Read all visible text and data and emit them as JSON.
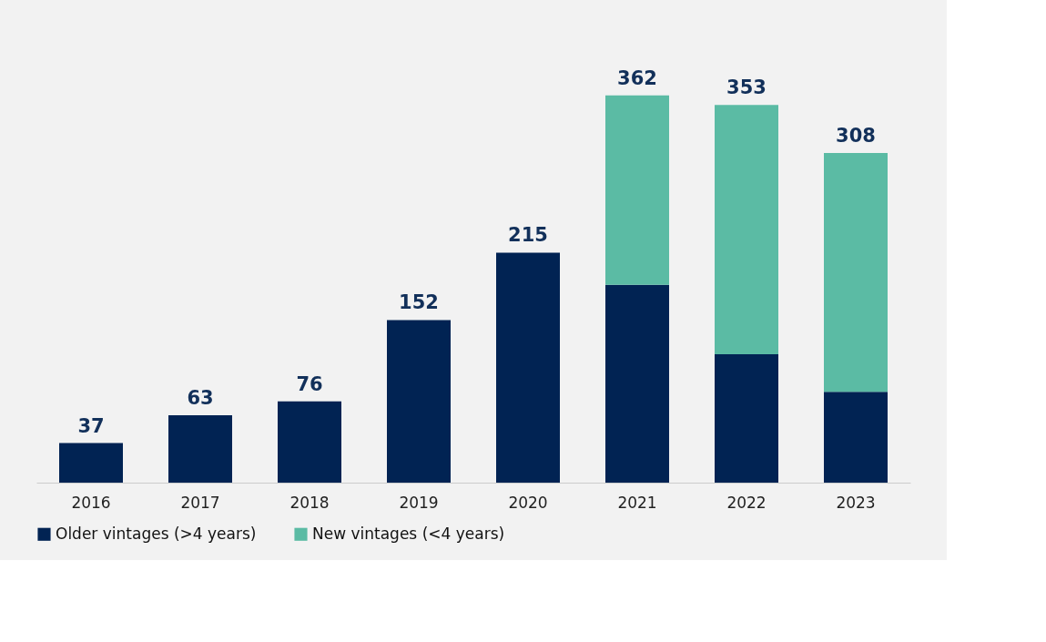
{
  "chart_data": {
    "type": "bar",
    "stacked": true,
    "categories": [
      "2016",
      "2017",
      "2018",
      "2019",
      "2020",
      "2021",
      "2022",
      "2023"
    ],
    "series": [
      {
        "name": "Older vintages (>4 years)",
        "color": "#012353",
        "values": [
          37,
          63,
          76,
          152,
          215,
          185,
          120,
          85
        ],
        "value_labels": [
          "37",
          "63",
          "76",
          "152",
          "215",
          null,
          null,
          null
        ]
      },
      {
        "name": "New vintages (<4 years)",
        "color": "#5bbba4",
        "values": [
          null,
          null,
          null,
          null,
          null,
          177,
          233,
          223
        ]
      }
    ],
    "totals": [
      null,
      null,
      null,
      null,
      null,
      "362",
      "353",
      "308"
    ],
    "legend": "bottom",
    "grid": false,
    "tick_labels": "x"
  }
}
